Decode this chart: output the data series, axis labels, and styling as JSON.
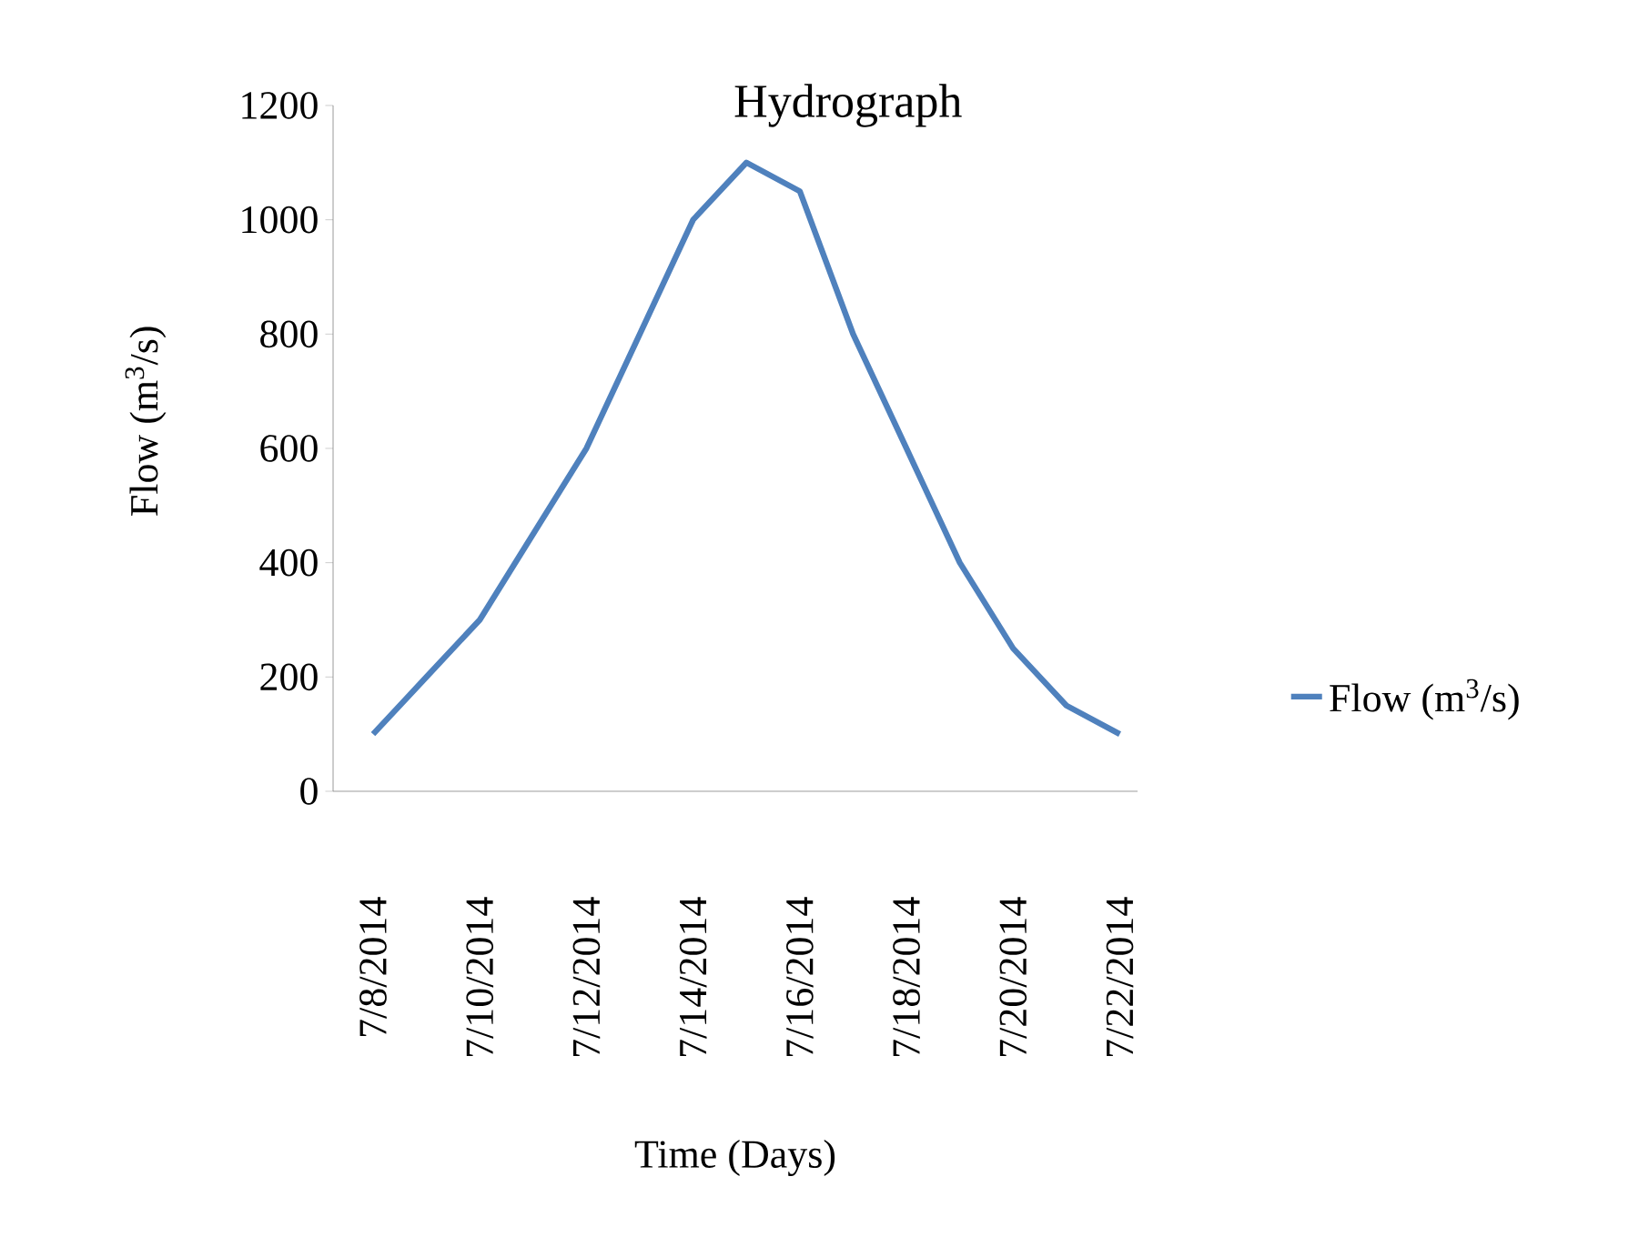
{
  "chart_data": {
    "type": "line",
    "title": "Hydrograph",
    "xlabel": "Time (Days)",
    "ylabel": "Flow (m$^{3}$/s)",
    "x": [
      "2014-07-08",
      "2014-07-09",
      "2014-07-10",
      "2014-07-11",
      "2014-07-12",
      "2014-07-13",
      "2014-07-14",
      "2014-07-15",
      "2014-07-16",
      "2014-07-17",
      "2014-07-18",
      "2014-07-19",
      "2014-07-20",
      "2014-07-21",
      "2014-07-22"
    ],
    "series": [
      {
        "name": "Flow (m$^{3}$/s)",
        "color": "#4f81bd",
        "values": [
          100,
          200,
          300,
          450,
          600,
          800,
          1000,
          1100,
          1050,
          800,
          600,
          400,
          250,
          150,
          100
        ]
      }
    ],
    "xlim": [
      "2014-07-07T06:00",
      "2014-07-22T08:00"
    ],
    "xticks": [
      {
        "value": "2014-07-08",
        "label": "7/8/2014"
      },
      {
        "value": "2014-07-10",
        "label": "7/10/2014"
      },
      {
        "value": "2014-07-12",
        "label": "7/12/2014"
      },
      {
        "value": "2014-07-14",
        "label": "7/14/2014"
      },
      {
        "value": "2014-07-16",
        "label": "7/16/2014"
      },
      {
        "value": "2014-07-18",
        "label": "7/18/2014"
      },
      {
        "value": "2014-07-20",
        "label": "7/20/2014"
      },
      {
        "value": "2014-07-22",
        "label": "7/22/2014"
      }
    ],
    "ylim": [
      0,
      1200
    ],
    "yticks": [
      0,
      200,
      400,
      600,
      800,
      1000,
      1200
    ],
    "legend": "right",
    "grid": false,
    "marker": "none",
    "line_style": "solid"
  }
}
